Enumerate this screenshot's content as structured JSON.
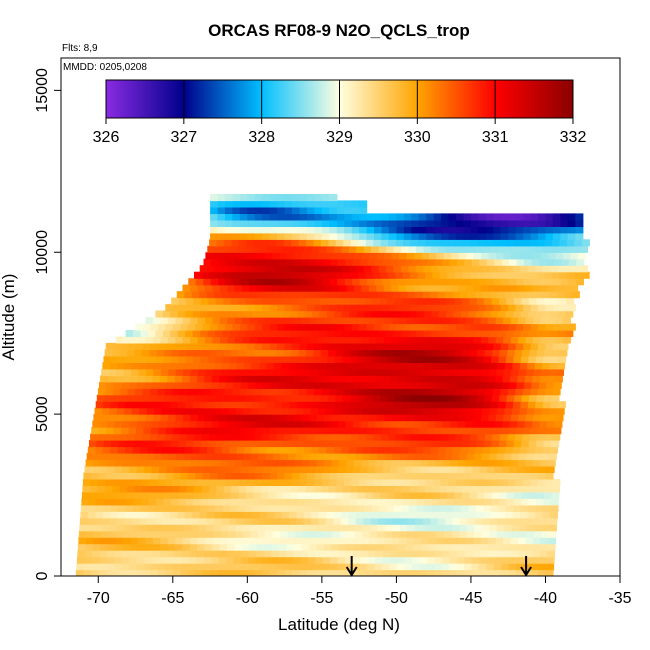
{
  "chart_data": {
    "type": "heatmap",
    "title": "ORCAS RF08-9 N2O_QCLS_trop",
    "annotations": [
      "Flts: 8,9",
      "MMDD: 0205,0208"
    ],
    "xlabel": "Latitude (deg N)",
    "ylabel": "Altitude (m)",
    "xlim": [
      -72.5,
      -35
    ],
    "ylim": [
      0,
      16000
    ],
    "x_ticks": [
      -70,
      -65,
      -60,
      -55,
      -50,
      -45,
      -40,
      -35
    ],
    "y_ticks": [
      0,
      5000,
      10000,
      15000
    ],
    "colorbar": {
      "ticks": [
        326,
        327,
        328,
        329,
        330,
        331,
        332
      ],
      "range": [
        326,
        332
      ],
      "colors": [
        "#8a2be2",
        "#00008b",
        "#00bfff",
        "#ffffe0",
        "#ffa500",
        "#ff0000",
        "#8b0000"
      ]
    },
    "arrows_at_latitude": [
      -53,
      -41.3
    ],
    "grid": false,
    "data_summary": {
      "coverage_lat": [
        -71.5,
        -37.5
      ],
      "coverage_alt_m": [
        0,
        11800
      ],
      "regions": [
        {
          "lat": [
            -63,
            -53
          ],
          "alt_m": [
            9200,
            10200
          ],
          "value": 331.2
        },
        {
          "lat": [
            -52,
            -42
          ],
          "alt_m": [
            4800,
            6800
          ],
          "value": 331.0
        },
        {
          "lat": [
            -68,
            -58
          ],
          "alt_m": [
            3600,
            6000
          ],
          "value": 330.5
        },
        {
          "lat": [
            -72,
            -40
          ],
          "alt_m": [
            0,
            3000
          ],
          "value": 329.6
        },
        {
          "lat": [
            -60,
            -38
          ],
          "alt_m": [
            10300,
            11500
          ],
          "value": 327.8
        },
        {
          "lat": [
            -52,
            -38
          ],
          "alt_m": [
            11000,
            11600
          ],
          "value": 326.6
        }
      ]
    }
  }
}
